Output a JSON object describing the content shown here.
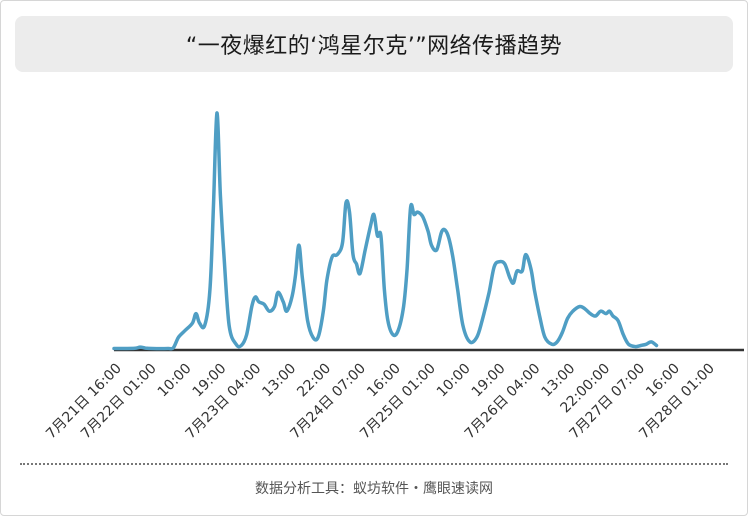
{
  "title": "“一夜爆红的‘鸿星尔克’”网络传播趋势",
  "footer": "数据分析工具：蚁坊软件・鹰眼速读网",
  "colors": {
    "line": "#4f9ec4",
    "axis": "#333333",
    "tick_text": "#333333",
    "title_bg": "#ececec"
  },
  "chart_data": {
    "type": "line",
    "title": "“一夜爆红的‘鸿星尔克’”网络传播趋势",
    "xlabel": "",
    "ylabel": "",
    "grid": false,
    "legend": "none",
    "tick_labels": [
      "7月21日 16:00",
      "7月22日 01:00",
      "10:00",
      "19:00",
      "7月23日 04:00",
      "13:00",
      "22:00",
      "7月24日 07:00",
      "16:00",
      "7月25日 01:00",
      "10:00",
      "19:00",
      "7月26日 04:00",
      "13:00",
      "22:00:00",
      "7月27日 07:00",
      "16:00",
      "7月28日 01:00"
    ],
    "x_range": [
      0,
      18
    ],
    "ylim": [
      0,
      100
    ],
    "series": [
      {
        "values": [
          [
            0.0,
            0.2
          ],
          [
            0.3,
            0.2
          ],
          [
            0.6,
            0.3
          ],
          [
            0.75,
            0.8
          ],
          [
            0.9,
            0.4
          ],
          [
            1.1,
            0.2
          ],
          [
            1.55,
            0.2
          ],
          [
            1.7,
            0.5
          ],
          [
            1.85,
            5
          ],
          [
            2.05,
            8
          ],
          [
            2.25,
            11
          ],
          [
            2.35,
            15
          ],
          [
            2.45,
            11
          ],
          [
            2.6,
            10
          ],
          [
            2.75,
            25
          ],
          [
            2.85,
            60
          ],
          [
            2.95,
            100
          ],
          [
            3.05,
            65
          ],
          [
            3.15,
            40
          ],
          [
            3.3,
            10
          ],
          [
            3.5,
            2
          ],
          [
            3.65,
            1.5
          ],
          [
            3.8,
            6
          ],
          [
            3.95,
            18
          ],
          [
            4.05,
            22
          ],
          [
            4.15,
            20
          ],
          [
            4.3,
            19
          ],
          [
            4.45,
            16
          ],
          [
            4.6,
            18
          ],
          [
            4.7,
            24
          ],
          [
            4.85,
            20
          ],
          [
            4.95,
            16
          ],
          [
            5.1,
            22
          ],
          [
            5.2,
            31
          ],
          [
            5.3,
            44
          ],
          [
            5.4,
            30
          ],
          [
            5.55,
            12
          ],
          [
            5.7,
            5
          ],
          [
            5.85,
            5
          ],
          [
            6.0,
            16
          ],
          [
            6.1,
            29
          ],
          [
            6.25,
            39
          ],
          [
            6.4,
            40
          ],
          [
            6.55,
            45
          ],
          [
            6.65,
            62
          ],
          [
            6.75,
            58
          ],
          [
            6.85,
            40
          ],
          [
            6.95,
            36
          ],
          [
            7.05,
            32
          ],
          [
            7.2,
            42
          ],
          [
            7.35,
            52
          ],
          [
            7.45,
            57
          ],
          [
            7.55,
            48
          ],
          [
            7.65,
            48
          ],
          [
            7.75,
            25
          ],
          [
            7.85,
            12
          ],
          [
            8.0,
            6
          ],
          [
            8.15,
            8
          ],
          [
            8.3,
            18
          ],
          [
            8.4,
            34
          ],
          [
            8.5,
            60
          ],
          [
            8.6,
            57
          ],
          [
            8.7,
            58
          ],
          [
            8.85,
            56
          ],
          [
            9.0,
            50
          ],
          [
            9.1,
            44
          ],
          [
            9.25,
            42
          ],
          [
            9.4,
            50
          ],
          [
            9.55,
            49
          ],
          [
            9.7,
            40
          ],
          [
            9.85,
            25
          ],
          [
            10.0,
            10
          ],
          [
            10.2,
            3
          ],
          [
            10.4,
            5
          ],
          [
            10.55,
            12
          ],
          [
            10.75,
            24
          ],
          [
            10.9,
            35
          ],
          [
            11.05,
            37
          ],
          [
            11.2,
            36
          ],
          [
            11.35,
            30
          ],
          [
            11.45,
            28
          ],
          [
            11.55,
            33
          ],
          [
            11.7,
            33
          ],
          [
            11.8,
            40
          ],
          [
            11.95,
            34
          ],
          [
            12.05,
            25
          ],
          [
            12.2,
            14
          ],
          [
            12.35,
            5
          ],
          [
            12.55,
            2
          ],
          [
            12.7,
            3
          ],
          [
            12.85,
            7
          ],
          [
            13.0,
            13
          ],
          [
            13.15,
            16
          ],
          [
            13.35,
            18
          ],
          [
            13.5,
            17
          ],
          [
            13.65,
            15
          ],
          [
            13.8,
            14
          ],
          [
            13.95,
            16
          ],
          [
            14.1,
            15
          ],
          [
            14.2,
            16
          ],
          [
            14.3,
            14
          ],
          [
            14.45,
            12
          ],
          [
            14.6,
            6
          ],
          [
            14.75,
            2
          ],
          [
            14.95,
            1
          ],
          [
            15.1,
            1.5
          ],
          [
            15.25,
            2
          ],
          [
            15.4,
            3
          ],
          [
            15.55,
            1.5
          ]
        ]
      }
    ]
  }
}
